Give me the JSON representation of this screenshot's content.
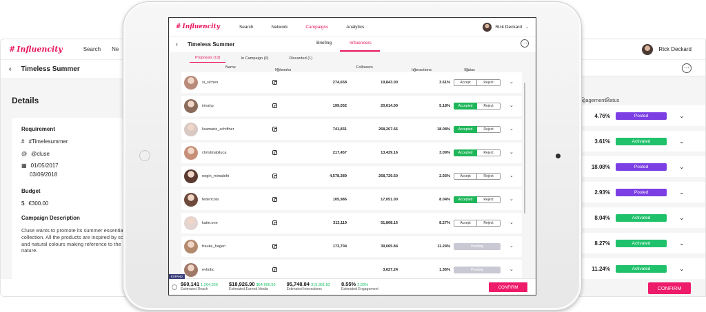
{
  "brand": {
    "logo_text": "Influencity",
    "accent": "#e8175d",
    "confirm_color": "#ee1a6a"
  },
  "nav": {
    "search": "Search",
    "network": "Network",
    "campaigns": "Campaigns",
    "analytics": "Analytics",
    "user_name": "Rick Deckard"
  },
  "bg_left": {
    "nav_search": "Search",
    "nav_partial": "Ne",
    "title": "Timeless Summer",
    "details_heading": "Details",
    "requirement_label": "Requirement",
    "hashtag": "#Timelesummer",
    "mention": "@cluse",
    "date_start": "01/05/2017",
    "date_end": "03/09/2018",
    "budget_label": "Budget",
    "budget_value": "€300.00",
    "campaign_desc_label": "Campaign Description",
    "campaign_desc": "Cluse wants to promote its summer essentials collection. All the products are inspired by soft and natural colours making reference to the nature."
  },
  "bg_right": {
    "user_name": "Rick Deckard",
    "col_engagement": "ngagement",
    "col_status": "Status",
    "rows": [
      {
        "engagement": "4.76%",
        "status": "Posted"
      },
      {
        "engagement": "3.61%",
        "status": "Activated"
      },
      {
        "engagement": "18.08%",
        "status": "Posted"
      },
      {
        "engagement": "2.93%",
        "status": "Posted"
      },
      {
        "engagement": "8.04%",
        "status": "Activated"
      },
      {
        "engagement": "8.27%",
        "status": "Activated"
      },
      {
        "engagement": "11.24%",
        "status": "Activated"
      }
    ],
    "confirm": "CONFIRM"
  },
  "campaign": {
    "title": "Timeless Summer",
    "tab_briefing": "Briefing",
    "tab_influencers": "Influencers",
    "subtabs": [
      "Proposals (13)",
      "In Campaign (0)",
      "Discarded (1)"
    ],
    "columns": {
      "name": "Name",
      "networks": "Networks",
      "followers": "Followers",
      "interactions": "Interactions",
      "status": "Status"
    },
    "accept_label": "Accept",
    "accepted_label": "Accepted",
    "reject_label": "Reject",
    "pending_label": "Pending",
    "rows": [
      {
        "name": "si_sichen",
        "reach": "274,658",
        "earned": "19,843.00",
        "interactions": "3.61%",
        "state": "open",
        "avatar": "#b98b7a"
      },
      {
        "name": "irinahp",
        "reach": "199,052",
        "earned": "20,614.00",
        "interactions": "5.18%",
        "state": "accepted",
        "avatar": "#8a6a5a"
      },
      {
        "name": "lisamarie_schiffner",
        "reach": "741,831",
        "earned": "268,267.66",
        "interactions": "18.08%",
        "state": "accepted",
        "avatar": "#d8c9c4"
      },
      {
        "name": "christinabiluca",
        "reach": "217,457",
        "earned": "13,429.16",
        "interactions": "3.09%",
        "state": "accepted",
        "avatar": "#c58f78"
      },
      {
        "name": "negin_mirsalehi",
        "reach": "4,578,389",
        "earned": "268,729.50",
        "interactions": "2.93%",
        "state": "open",
        "avatar": "#5a3a30"
      },
      {
        "name": "federicola",
        "reach": "105,986",
        "earned": "17,051.00",
        "interactions": "8.04%",
        "state": "accepted",
        "avatar": "#6e4a3c"
      },
      {
        "name": "katie.one",
        "reach": "313,119",
        "earned": "51,808.16",
        "interactions": "8.27%",
        "state": "open",
        "avatar": "#e2d4d0"
      },
      {
        "name": "frauke_hagen",
        "reach": "173,704",
        "earned": "39,065.84",
        "interactions": "11.24%",
        "state": "pending",
        "avatar": "#b48a6e"
      },
      {
        "name": "evlmbc",
        "reach": "",
        "earned": "3,627.24",
        "interactions": "1.36%",
        "state": "pending",
        "avatar": "#a07868"
      }
    ]
  },
  "footer": {
    "badge": "EXPAND",
    "reach_value": "$60,141",
    "reach_delta": "1,264,326",
    "reach_label": "Estimated Reach",
    "earned_value": "$18,926.90",
    "earned_delta": "$64,666.56",
    "earned_label": "Estimated Earned Media",
    "inter_value": "95,748.84",
    "inter_delta": "319,361.82",
    "inter_label": "Estimated Interactions",
    "eng_value": "8.55%",
    "eng_delta": "2.83%",
    "eng_label": "Estimated Engagement",
    "confirm": "CONFIRM"
  }
}
